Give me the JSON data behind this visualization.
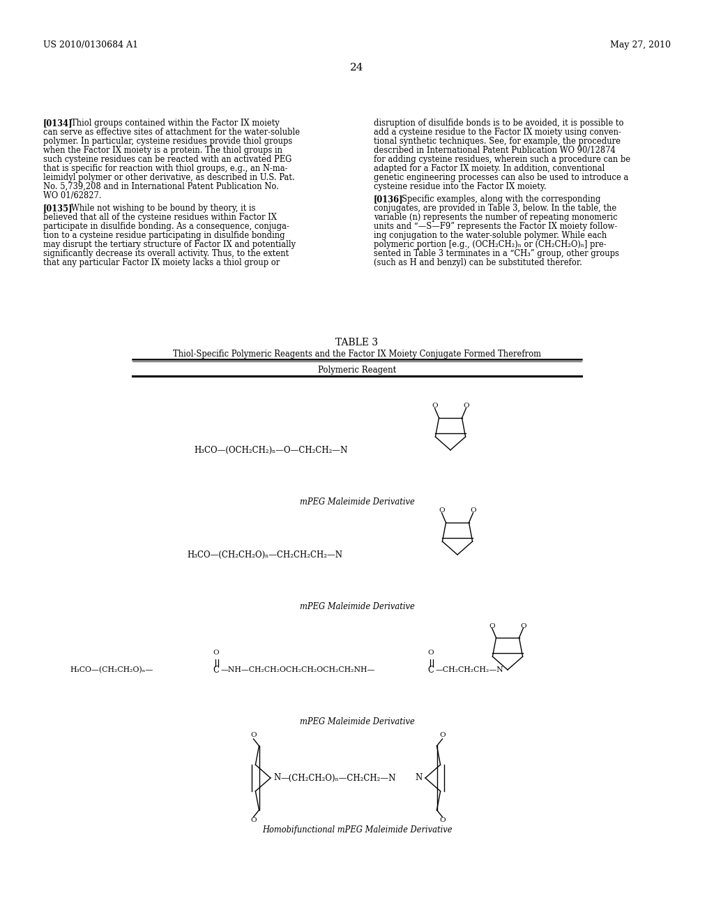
{
  "background_color": "#ffffff",
  "header_left": "US 2010/0130684 A1",
  "header_right": "May 27, 2010",
  "page_number": "24",
  "table3_title": "TABLE 3",
  "table3_subtitle": "Thiol-Specific Polymeric Reagents and the Factor IX Moiety Conjugate Formed Therefrom",
  "table3_col_header": "Polymeric Reagent",
  "table3_label1": "mPEG Maleimide Derivative",
  "table3_label2": "mPEG Maleimide Derivative",
  "table3_label3": "mPEG Maleimide Derivative",
  "table3_label4": "Homobifunctional mPEG Maleimide Derivative",
  "text_color": "#000000",
  "p134_left_lines": [
    "Thiol groups contained within the Factor IX moiety",
    "can serve as effective sites of attachment for the water-soluble",
    "polymer. In particular, cysteine residues provide thiol groups",
    "when the Factor IX moiety is a protein. The thiol groups in",
    "such cysteine residues can be reacted with an activated PEG",
    "that is specific for reaction with thiol groups, e.g., an N-ma-",
    "leimidyl polymer or other derivative, as described in U.S. Pat.",
    "No. 5,739,208 and in International Patent Publication No.",
    "WO 01/62827."
  ],
  "p134_right_lines": [
    "disruption of disulfide bonds is to be avoided, it is possible to",
    "add a cysteine residue to the Factor IX moiety using conven-",
    "tional synthetic techniques. See, for example, the procedure",
    "described in International Patent Publication WO 90/12874",
    "for adding cysteine residues, wherein such a procedure can be",
    "adapted for a Factor IX moiety. In addition, conventional",
    "genetic engineering processes can also be used to introduce a",
    "cysteine residue into the Factor IX moiety."
  ],
  "p135_left_lines": [
    "While not wishing to be bound by theory, it is",
    "believed that all of the cysteine residues within Factor IX",
    "participate in disulfide bonding. As a consequence, conjuga-",
    "tion to a cysteine residue participating in disulfide bonding",
    "may disrupt the tertiary structure of Factor IX and potentially",
    "significantly decrease its overall activity. Thus, to the extent",
    "that any particular Factor IX moiety lacks a thiol group or"
  ],
  "p136_right_lines": [
    "Specific examples, along with the corresponding",
    "conjugates, are provided in Table 3, below. In the table, the",
    "variable (n) represents the number of repeating monomeric",
    "units and “—S—F9” represents the Factor IX moiety follow-",
    "ing conjugation to the water-soluble polymer. While each",
    "polymeric portion [e.g., (OCH₂CH₂)ₙ or (CH₂CH₂O)ₙ] pre-",
    "sented in Table 3 terminates in a “CH₃” group, other groups",
    "(such as H and benzyl) can be substituted therefor."
  ]
}
